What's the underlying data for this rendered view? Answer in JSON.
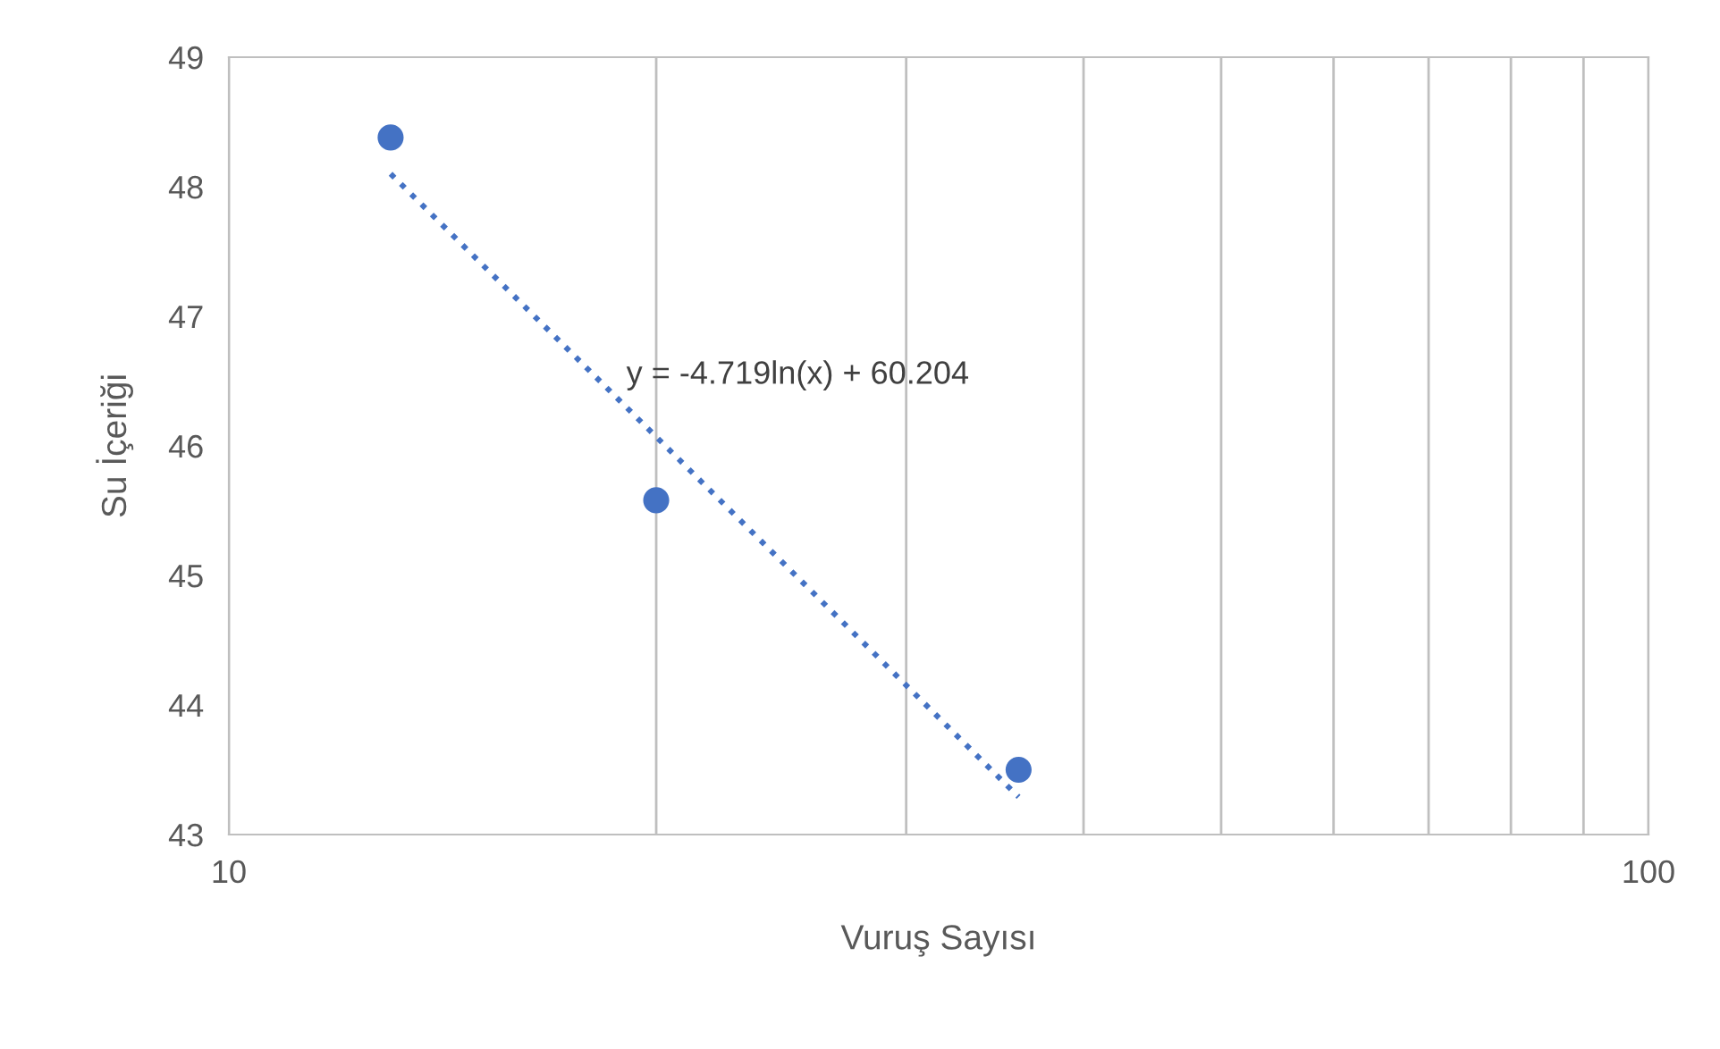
{
  "chart_data": {
    "type": "scatter",
    "xlabel": "Vuruş Sayısı",
    "ylabel": "Su İçeriği",
    "log": "x",
    "series": [
      {
        "color": "#4472c4",
        "x": [
          13,
          20,
          36
        ],
        "values": [
          48.38,
          45.58,
          43.5
        ],
        "marker": "circle"
      },
      {
        "type": "line",
        "color": "#4472c4",
        "x": [
          13,
          20,
          36
        ],
        "values": [
          48.1,
          46.07,
          43.29
        ],
        "line_style": "dotted",
        "marker": "none"
      }
    ],
    "annotations": [
      "y = -4.719ln(x) + 60.204"
    ],
    "xlim": [
      10,
      100
    ],
    "xticks": [
      10,
      {
        "value": 20,
        "label": null
      },
      {
        "value": 30,
        "label": null
      },
      {
        "value": 40,
        "label": null
      },
      {
        "value": 50,
        "label": null
      },
      {
        "value": 60,
        "label": null
      },
      {
        "value": 70,
        "label": null
      },
      {
        "value": 80,
        "label": null
      },
      {
        "value": 90,
        "label": null
      },
      100
    ],
    "ylim": [
      43,
      49
    ],
    "yticks": [
      43,
      44,
      45,
      46,
      47,
      48,
      49
    ],
    "grid": "x"
  }
}
